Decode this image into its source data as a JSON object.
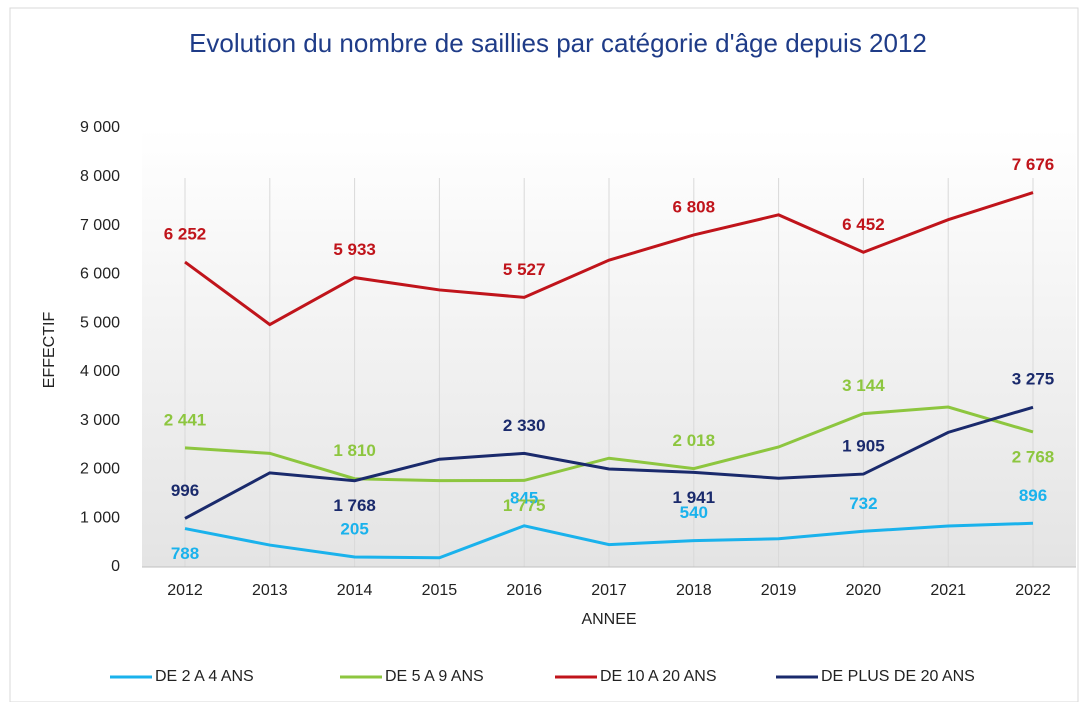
{
  "chart_data": {
    "type": "line",
    "title": "Evolution du nombre de saillies par catégorie d'âge depuis 2012",
    "xlabel": "ANNEE",
    "ylabel": "EFFECTIF",
    "categories": [
      "2012",
      "2013",
      "2014",
      "2015",
      "2016",
      "2017",
      "2018",
      "2019",
      "2020",
      "2021",
      "2022"
    ],
    "ylim": [
      0,
      9000
    ],
    "yticks": [
      0,
      {
        "value": 1000,
        "label": "1 000"
      },
      {
        "value": 2000,
        "label": "2 000"
      },
      {
        "value": 3000,
        "label": "3 000"
      },
      {
        "value": 4000,
        "label": "4 000"
      },
      {
        "value": 5000,
        "label": "5 000"
      },
      {
        "value": 6000,
        "label": "6 000"
      },
      {
        "value": 7000,
        "label": "7 000"
      },
      {
        "value": 8000,
        "label": "8 000"
      },
      {
        "value": 9000,
        "label": "9 000"
      }
    ],
    "legend": "bottom",
    "series": [
      {
        "name": "DE 2 A 4 ANS",
        "color": "#1ab2ec",
        "values": [
          788,
          450,
          205,
          190,
          845,
          460,
          540,
          580,
          732,
          840,
          896
        ],
        "value_labels": [
          "788",
          null,
          "205",
          null,
          "845",
          null,
          "540",
          null,
          "732",
          null,
          "896"
        ]
      },
      {
        "name": "DE 5 A 9 ANS",
        "color": "#8dc63f",
        "values": [
          2441,
          2330,
          1810,
          1770,
          1775,
          2230,
          2018,
          2460,
          3144,
          3280,
          2768
        ],
        "value_labels": [
          "2 441",
          null,
          "1 810",
          null,
          "1 775",
          null,
          "2 018",
          null,
          "3 144",
          null,
          "2 768"
        ]
      },
      {
        "name": "DE 10 A 20 ANS",
        "color": "#c0141b",
        "values": [
          6252,
          4970,
          5933,
          5680,
          5527,
          6290,
          6808,
          7220,
          6452,
          7120,
          7676
        ],
        "value_labels": [
          "6 252",
          null,
          "5 933",
          null,
          "5 527",
          null,
          "6 808",
          null,
          "6 452",
          null,
          "7 676"
        ]
      },
      {
        "name": "DE PLUS DE 20 ANS",
        "color": "#1a2a6c",
        "values": [
          996,
          1930,
          1768,
          2210,
          2330,
          2010,
          1941,
          1820,
          1905,
          2760,
          3275
        ],
        "value_labels": [
          "996",
          null,
          "1 768",
          null,
          "2 330",
          null,
          "1 941",
          null,
          "1 905",
          null,
          "3 275"
        ]
      }
    ]
  }
}
